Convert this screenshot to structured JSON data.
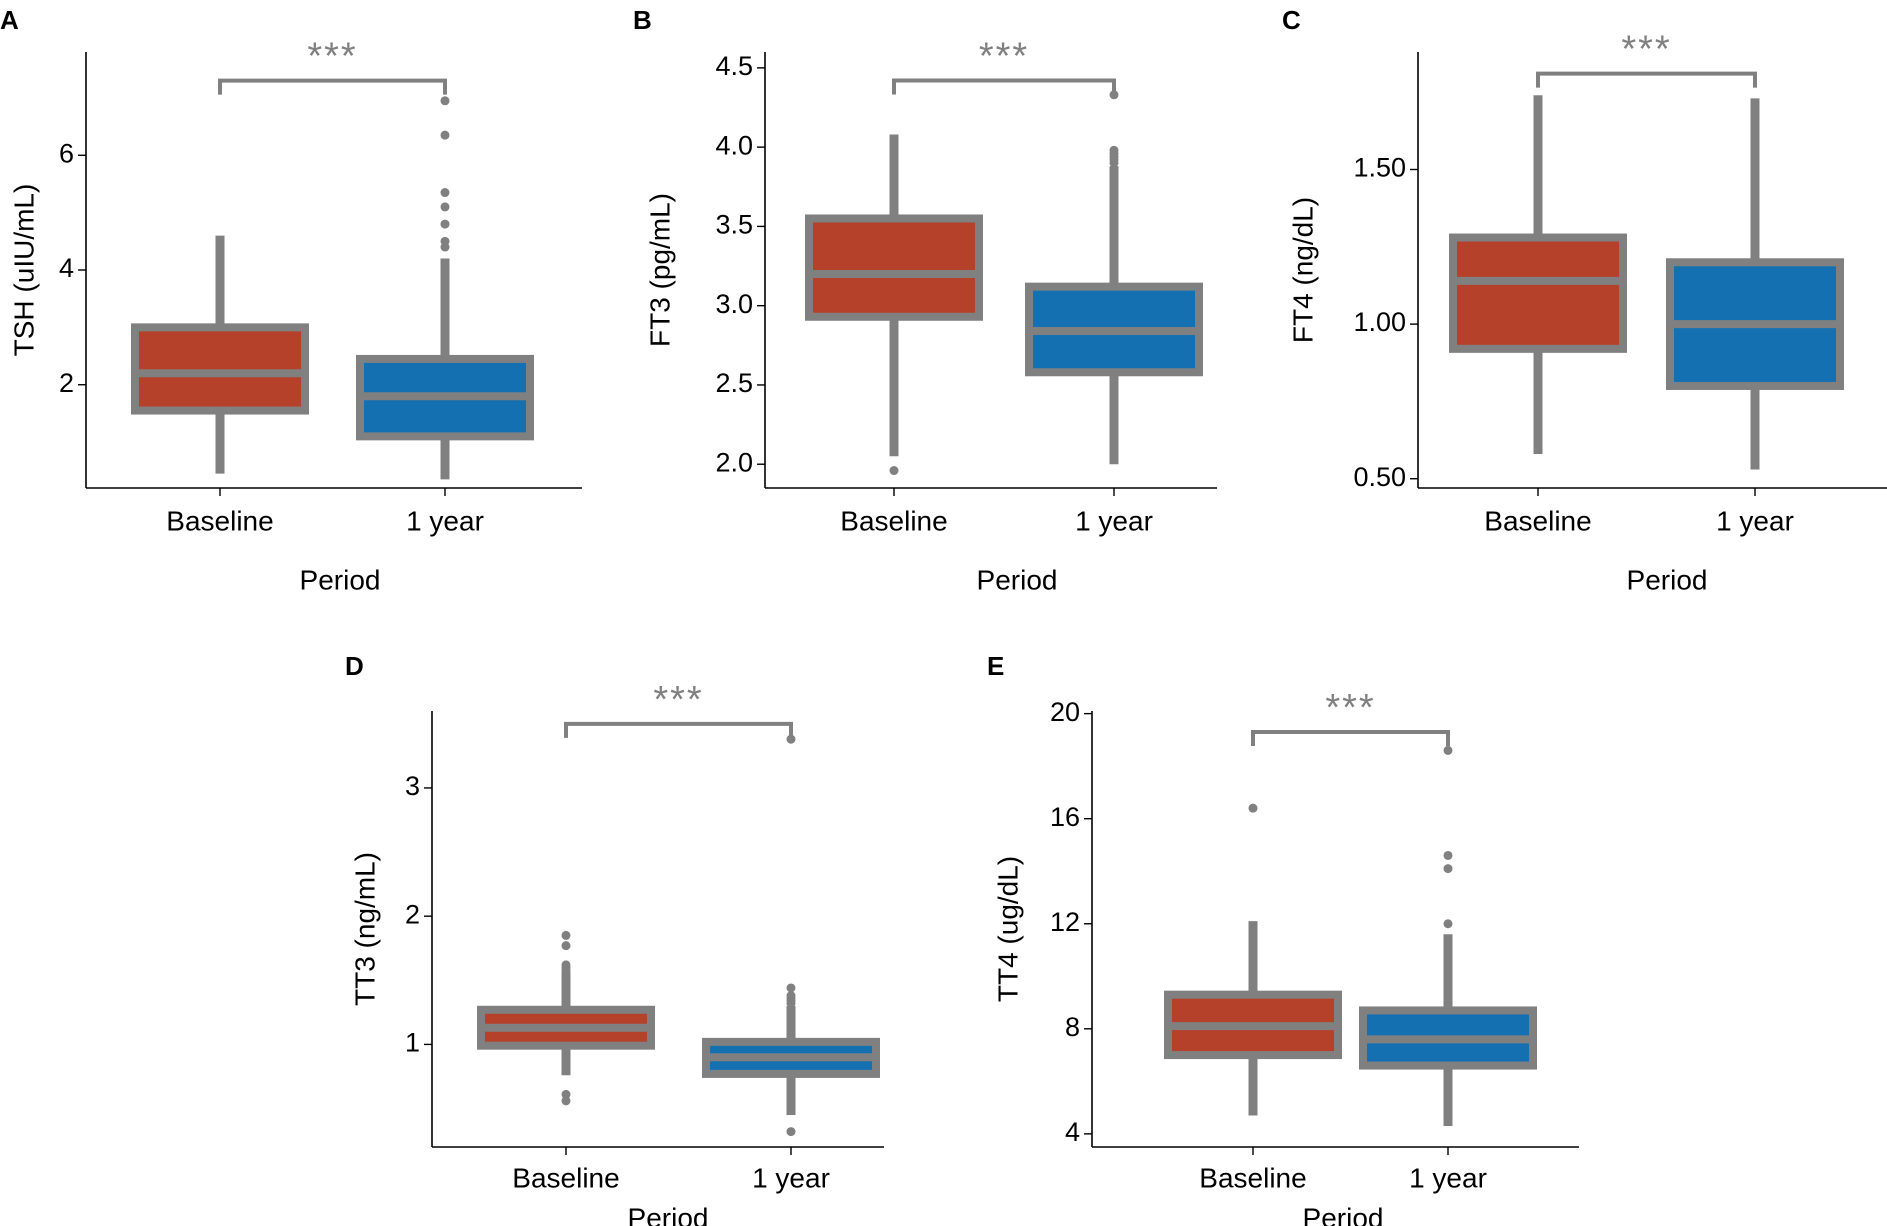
{
  "figure": {
    "colors": {
      "baseline_fill": "#B5412B",
      "one_year_fill": "#1570B2",
      "box_outline": "#808080",
      "axis": "#000000",
      "significance": "#808080"
    }
  },
  "chart_data": [
    {
      "panel": "A",
      "type": "box",
      "xlabel": "Period",
      "ylabel": "TSH (uIU/mL)",
      "categories": [
        "Baseline",
        "1 year"
      ],
      "yticks": [
        2,
        4,
        6
      ],
      "ylim": [
        0.2,
        7.8
      ],
      "boxes": [
        {
          "category": "Baseline",
          "lower_whisker": 0.45,
          "q1": 1.55,
          "median": 2.2,
          "q3": 3.0,
          "upper_whisker": 4.6,
          "outliers": []
        },
        {
          "category": "1 year",
          "lower_whisker": 0.35,
          "q1": 1.1,
          "median": 1.8,
          "q3": 2.45,
          "upper_whisker": 4.2,
          "outliers": [
            4.4,
            4.5,
            4.8,
            5.1,
            5.35,
            6.35,
            6.95
          ]
        }
      ],
      "significance": {
        "label": "***",
        "y": 7.3
      }
    },
    {
      "panel": "B",
      "type": "box",
      "xlabel": "Period",
      "ylabel": "FT3 (pg/mL)",
      "categories": [
        "Baseline",
        "1 year"
      ],
      "yticks": [
        "2.0",
        "2.5",
        "3.0",
        "3.5",
        "4.0",
        "4.5"
      ],
      "ylim": [
        1.85,
        4.6
      ],
      "boxes": [
        {
          "category": "Baseline",
          "lower_whisker": 2.05,
          "q1": 2.93,
          "median": 3.2,
          "q3": 3.55,
          "upper_whisker": 4.08,
          "outliers": [
            1.96
          ]
        },
        {
          "category": "1 year",
          "lower_whisker": 2.0,
          "q1": 2.58,
          "median": 2.84,
          "q3": 3.12,
          "upper_whisker": 3.88,
          "outliers": [
            3.9,
            3.92,
            3.94,
            3.96,
            3.98,
            4.33
          ]
        }
      ],
      "significance": {
        "label": "***",
        "y": 4.42
      }
    },
    {
      "panel": "C",
      "type": "box",
      "xlabel": "Period",
      "ylabel": "FT4 (ng/dL)",
      "categories": [
        "Baseline",
        "1 year"
      ],
      "yticks": [
        "0.50",
        "1.00",
        "1.50"
      ],
      "ylim": [
        0.47,
        1.88
      ],
      "boxes": [
        {
          "category": "Baseline",
          "lower_whisker": 0.58,
          "q1": 0.92,
          "median": 1.14,
          "q3": 1.28,
          "upper_whisker": 1.74,
          "outliers": []
        },
        {
          "category": "1 year",
          "lower_whisker": 0.53,
          "q1": 0.8,
          "median": 1.0,
          "q3": 1.2,
          "upper_whisker": 1.73,
          "outliers": []
        }
      ],
      "significance": {
        "label": "***",
        "y": 1.81
      }
    },
    {
      "panel": "D",
      "type": "box",
      "xlabel": "Period",
      "ylabel": "TT3 (ng/mL)",
      "categories": [
        "Baseline",
        "1 year"
      ],
      "yticks": [
        1,
        2,
        3
      ],
      "ylim": [
        0.2,
        3.6
      ],
      "boxes": [
        {
          "category": "Baseline",
          "lower_whisker": 0.76,
          "q1": 0.99,
          "median": 1.13,
          "q3": 1.27,
          "upper_whisker": 1.55,
          "outliers": [
            0.56,
            0.61,
            1.56,
            1.58,
            1.6,
            1.62,
            1.77,
            1.85
          ]
        },
        {
          "category": "1 year",
          "lower_whisker": 0.45,
          "q1": 0.77,
          "median": 0.9,
          "q3": 1.02,
          "upper_whisker": 1.3,
          "outliers": [
            0.32,
            1.32,
            1.34,
            1.36,
            1.38,
            1.44,
            3.38
          ]
        }
      ],
      "significance": {
        "label": "***",
        "y": 3.5
      }
    },
    {
      "panel": "E",
      "type": "box",
      "xlabel": "Period",
      "ylabel": "TT4 (ug/dL)",
      "categories": [
        "Baseline",
        "1 year"
      ],
      "yticks": [
        4,
        8,
        12,
        16,
        20
      ],
      "ylim": [
        3.5,
        20.1
      ],
      "boxes": [
        {
          "category": "Baseline",
          "lower_whisker": 4.7,
          "q1": 7.0,
          "median": 8.1,
          "q3": 9.3,
          "upper_whisker": 12.1,
          "outliers": [
            16.4
          ]
        },
        {
          "category": "1 year",
          "lower_whisker": 4.3,
          "q1": 6.6,
          "median": 7.6,
          "q3": 8.7,
          "upper_whisker": 11.6,
          "outliers": [
            12.0,
            14.1,
            14.6,
            18.6
          ]
        }
      ],
      "significance": {
        "label": "***",
        "y": 19.3
      }
    }
  ]
}
